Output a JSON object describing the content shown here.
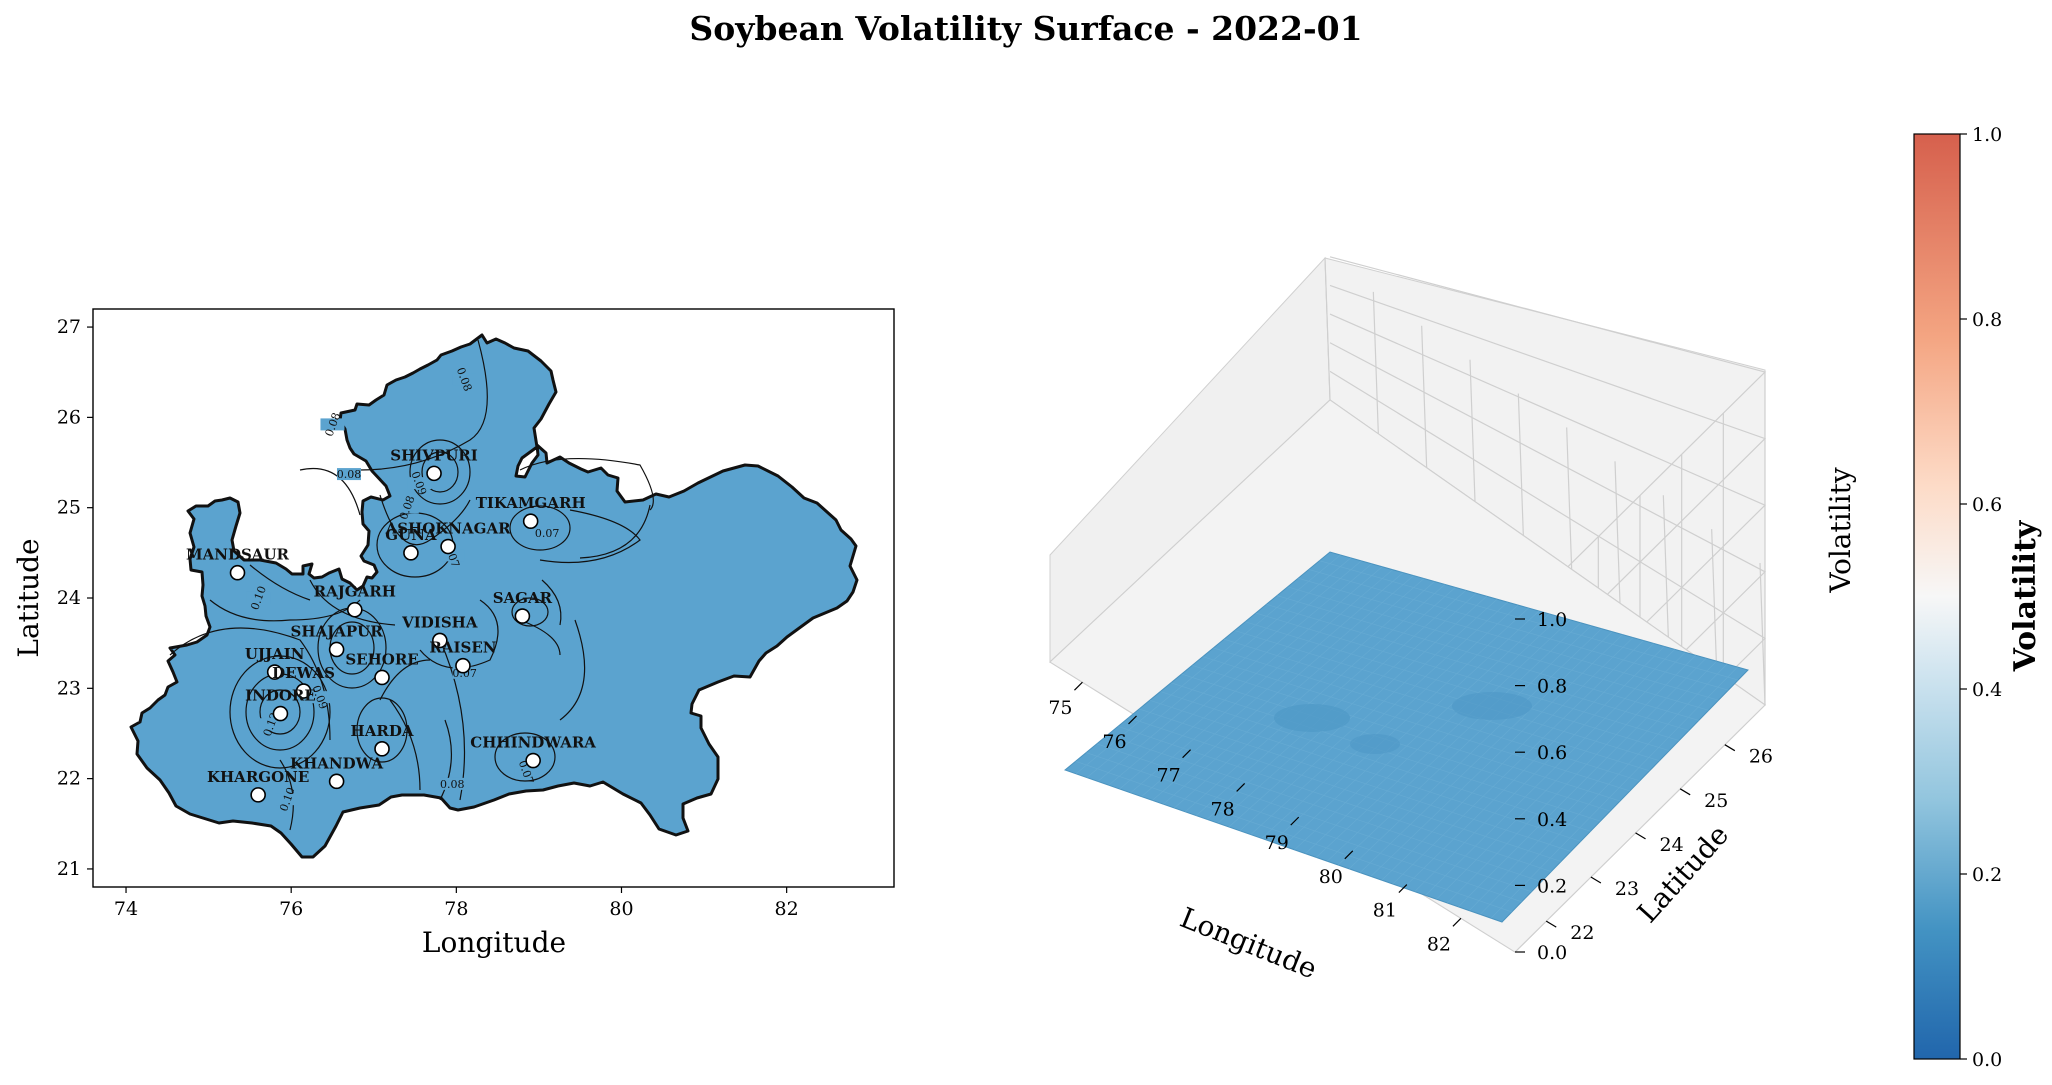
{
  "title": "Soybean Volatility Surface - 2022-01",
  "chart_data": [
    {
      "type": "heatmap",
      "subtype": "contour map",
      "xlabel": "Longitude",
      "ylabel": "Latitude",
      "xlim": [
        73.6,
        83.3
      ],
      "ylim": [
        20.8,
        27.2
      ],
      "xticks": [
        "74",
        "76",
        "78",
        "80",
        "82"
      ],
      "yticks": [
        "21",
        "22",
        "23",
        "24",
        "25",
        "26",
        "27"
      ],
      "fill_color": "#5ba3cf",
      "cities": [
        {
          "name": "SHIVPURI",
          "lon": 77.73,
          "lat": 25.38
        },
        {
          "name": "TIKAMGARH",
          "lon": 78.9,
          "lat": 24.85
        },
        {
          "name": "ASHOKNAGAR",
          "lon": 77.9,
          "lat": 24.57
        },
        {
          "name": "GUNA",
          "lon": 77.45,
          "lat": 24.5
        },
        {
          "name": "MANDSAUR",
          "lon": 75.35,
          "lat": 24.28
        },
        {
          "name": "RAJGARH",
          "lon": 76.77,
          "lat": 23.87
        },
        {
          "name": "SAGAR",
          "lon": 78.8,
          "lat": 23.8
        },
        {
          "name": "VIDISHA",
          "lon": 77.8,
          "lat": 23.53
        },
        {
          "name": "SHAJAPUR",
          "lon": 76.55,
          "lat": 23.43
        },
        {
          "name": "RAISEN",
          "lon": 78.08,
          "lat": 23.25
        },
        {
          "name": "UJJAIN",
          "lon": 75.8,
          "lat": 23.18
        },
        {
          "name": "SEHORE",
          "lon": 77.1,
          "lat": 23.12
        },
        {
          "name": "DEWAS",
          "lon": 76.15,
          "lat": 22.97
        },
        {
          "name": "INDORE",
          "lon": 75.87,
          "lat": 22.72
        },
        {
          "name": "HARDA",
          "lon": 77.1,
          "lat": 22.33
        },
        {
          "name": "CHHINDWARA",
          "lon": 78.93,
          "lat": 22.2
        },
        {
          "name": "KHANDWA",
          "lon": 76.55,
          "lat": 21.97
        },
        {
          "name": "KHARGONE",
          "lon": 75.6,
          "lat": 21.82
        }
      ],
      "contour_labels": [
        {
          "text": "0.08",
          "lon": 78.1,
          "lat": 26.4
        },
        {
          "text": "0.08",
          "lon": 76.5,
          "lat": 25.9
        },
        {
          "text": "0.08",
          "lon": 76.7,
          "lat": 25.35
        },
        {
          "text": "0.09",
          "lon": 77.55,
          "lat": 25.25
        },
        {
          "text": "0.08",
          "lon": 77.4,
          "lat": 24.98
        },
        {
          "text": "0.07",
          "lon": 79.1,
          "lat": 24.7
        },
        {
          "text": "0.07",
          "lon": 77.95,
          "lat": 24.45
        },
        {
          "text": "0.10",
          "lon": 75.6,
          "lat": 23.98
        },
        {
          "text": "0.07",
          "lon": 78.1,
          "lat": 23.15
        },
        {
          "text": "0.09",
          "lon": 76.35,
          "lat": 22.88
        },
        {
          "text": "0.12",
          "lon": 75.75,
          "lat": 22.58
        },
        {
          "text": "0.08",
          "lon": 77.95,
          "lat": 21.92
        },
        {
          "text": "0.07",
          "lon": 78.85,
          "lat": 22.05
        },
        {
          "text": "0.10",
          "lon": 75.95,
          "lat": 21.75
        }
      ]
    },
    {
      "type": "area",
      "subtype": "3d surface",
      "xlabel": "Longitude",
      "ylabel": "Latitude",
      "zlabel": "Volatility",
      "xticks": [
        "75",
        "76",
        "77",
        "78",
        "79",
        "80",
        "81",
        "82"
      ],
      "yticks": [
        "22",
        "23",
        "24",
        "25",
        "26"
      ],
      "zticks": [
        "0.0",
        "0.2",
        "0.4",
        "0.6",
        "0.8",
        "1.0"
      ],
      "xlim": [
        74.4,
        83.0
      ],
      "ylim": [
        21.3,
        26.9
      ],
      "zlim": [
        0,
        1
      ],
      "surface_value_range": [
        0.06,
        0.13
      ],
      "surface_color": "#5ba3cf"
    }
  ],
  "colorbar": {
    "label": "Volatility",
    "ticks": [
      "0.0",
      "0.2",
      "0.4",
      "0.6",
      "0.8",
      "1.0"
    ],
    "range": [
      0,
      1
    ],
    "colormap": "RdBu_r",
    "stops": [
      "#2166ac",
      "#4393c3",
      "#92c5de",
      "#d1e5f0",
      "#f7f7f7",
      "#fddbc7",
      "#f4a582",
      "#d6604d"
    ]
  }
}
